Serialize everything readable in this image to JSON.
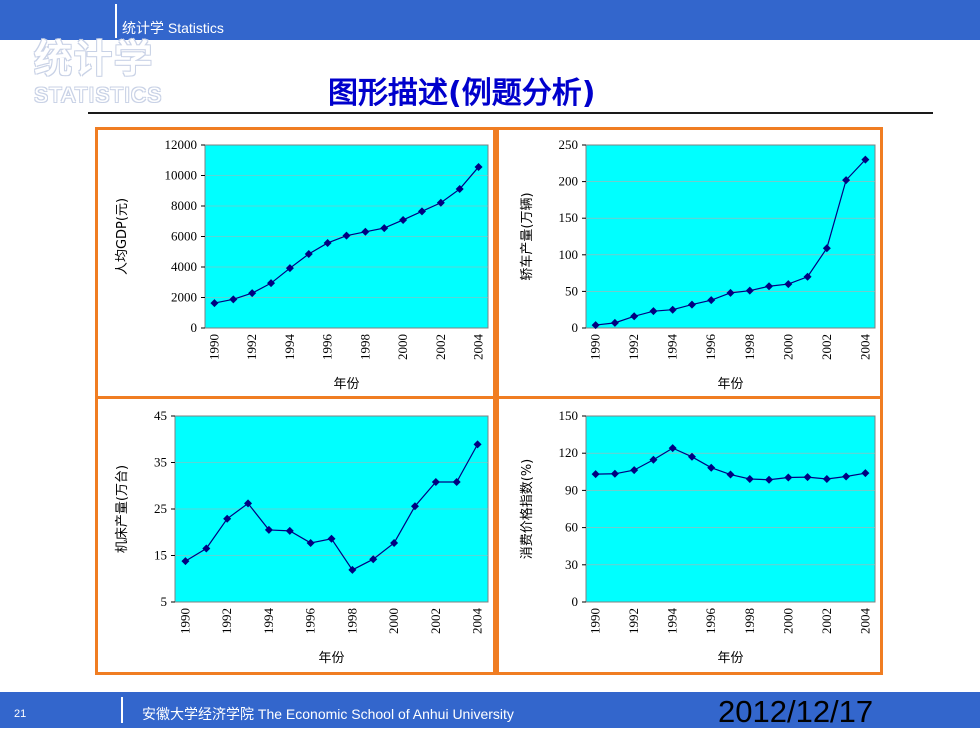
{
  "header": {
    "subtitle": "统计学  Statistics",
    "logo_cn": "统计学",
    "logo_en": "STATISTICS"
  },
  "slide": {
    "title": "图形描述(例题分析)"
  },
  "footer": {
    "page_number": "21",
    "school": "安徽大学经济学院 The Economic School of Anhui University",
    "date": "2012/12/17"
  },
  "colors": {
    "plot_bg": "#00ffff",
    "line": "#000080",
    "marker": "#000080",
    "border": "#f07d22",
    "bar": "#3366cc"
  },
  "chart_data": [
    {
      "type": "line",
      "ylabel": "人均GDP(元)",
      "xlabel": "年份",
      "x": [
        1990,
        1991,
        1992,
        1993,
        1994,
        1995,
        1996,
        1997,
        1998,
        1999,
        2000,
        2001,
        2002,
        2003,
        2004
      ],
      "x_tick_labels": [
        "1990",
        "1992",
        "1994",
        "1996",
        "1998",
        "2000",
        "2002",
        "2004"
      ],
      "values": [
        1634,
        1879,
        2287,
        2939,
        3923,
        4854,
        5576,
        6054,
        6308,
        6551,
        7086,
        7651,
        8214,
        9111,
        10561
      ],
      "ylim": [
        0,
        12000
      ],
      "y_ticks": [
        "0",
        "2000",
        "4000",
        "6000",
        "8000",
        "10000",
        "12000"
      ]
    },
    {
      "type": "line",
      "ylabel": "轿车产量(万辆)",
      "xlabel": "年份",
      "x": [
        1990,
        1991,
        1992,
        1993,
        1994,
        1995,
        1996,
        1997,
        1998,
        1999,
        2000,
        2001,
        2002,
        2003,
        2004
      ],
      "x_tick_labels": [
        "1990",
        "1992",
        "1994",
        "1996",
        "1998",
        "2000",
        "2002",
        "2004"
      ],
      "values": [
        4,
        7,
        16,
        23,
        25,
        32,
        38,
        48,
        51,
        57,
        60,
        70,
        109,
        202,
        230
      ],
      "ylim": [
        0,
        250
      ],
      "y_ticks": [
        "0",
        "50",
        "100",
        "150",
        "200",
        "250"
      ]
    },
    {
      "type": "line",
      "ylabel": "机床产量(万台)",
      "xlabel": "年份",
      "x": [
        1990,
        1991,
        1992,
        1993,
        1994,
        1995,
        1996,
        1997,
        1998,
        1999,
        2000,
        2001,
        2002,
        2003,
        2004
      ],
      "x_tick_labels": [
        "1990",
        "1992",
        "1994",
        "1996",
        "1998",
        "2000",
        "2002",
        "2004"
      ],
      "values": [
        13.8,
        16.5,
        22.9,
        26.2,
        20.5,
        20.3,
        17.7,
        18.6,
        11.9,
        14.2,
        17.7,
        25.6,
        30.8,
        30.8,
        38.9
      ],
      "ylim": [
        5,
        45
      ],
      "y_ticks": [
        "5",
        "15",
        "25",
        "35",
        "45"
      ]
    },
    {
      "type": "line",
      "ylabel": "消费价格指数(%)",
      "xlabel": "年份",
      "x": [
        1990,
        1991,
        1992,
        1993,
        1994,
        1995,
        1996,
        1997,
        1998,
        1999,
        2000,
        2001,
        2002,
        2003,
        2004
      ],
      "x_tick_labels": [
        "1990",
        "1992",
        "1994",
        "1996",
        "1998",
        "2000",
        "2002",
        "2004"
      ],
      "values": [
        103.1,
        103.4,
        106.4,
        114.7,
        124.1,
        117.1,
        108.3,
        102.8,
        99.2,
        98.6,
        100.4,
        100.7,
        99.2,
        101.2,
        103.9
      ],
      "ylim": [
        0,
        150
      ],
      "y_ticks": [
        "0",
        "30",
        "60",
        "90",
        "120",
        "150"
      ]
    }
  ]
}
